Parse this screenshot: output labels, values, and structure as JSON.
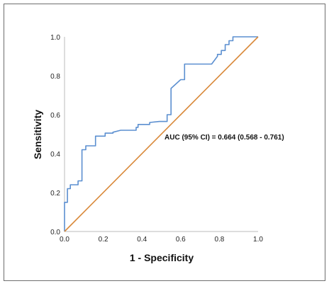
{
  "chart_data": {
    "type": "line",
    "xlabel": "1 - Specificity",
    "ylabel": "Sensitivity",
    "xlim": [
      0,
      1
    ],
    "ylim": [
      0,
      1
    ],
    "xticks": [
      "0.0",
      "0.2",
      "0.4",
      "0.6",
      "0.8",
      "1.0"
    ],
    "yticks": [
      "0.0",
      "0.2",
      "0.4",
      "0.6",
      "0.8",
      "1.0"
    ],
    "grid": false,
    "annotation": "AUC (95% CI) = 0.664 (0.568 - 0.761)",
    "series": [
      {
        "color": "#5b8fd0",
        "x": [
          0.0,
          0.0,
          0.015,
          0.015,
          0.03,
          0.03,
          0.07,
          0.07,
          0.09,
          0.09,
          0.11,
          0.11,
          0.16,
          0.16,
          0.21,
          0.21,
          0.25,
          0.25,
          0.29,
          0.37,
          0.37,
          0.38,
          0.38,
          0.44,
          0.44,
          0.49,
          0.53,
          0.53,
          0.55,
          0.55,
          0.6,
          0.62,
          0.62,
          0.76,
          0.79,
          0.79,
          0.81,
          0.81,
          0.83,
          0.83,
          0.85,
          0.85,
          0.87,
          0.87,
          1.0
        ],
        "y": [
          0.0,
          0.15,
          0.15,
          0.22,
          0.22,
          0.24,
          0.24,
          0.26,
          0.26,
          0.42,
          0.42,
          0.44,
          0.44,
          0.49,
          0.49,
          0.505,
          0.505,
          0.51,
          0.52,
          0.52,
          0.535,
          0.535,
          0.55,
          0.55,
          0.56,
          0.565,
          0.565,
          0.6,
          0.6,
          0.735,
          0.78,
          0.78,
          0.86,
          0.86,
          0.9,
          0.91,
          0.91,
          0.93,
          0.93,
          0.96,
          0.96,
          0.98,
          0.98,
          1.0,
          1.0
        ]
      },
      {
        "color": "#d9893a",
        "x": [
          0,
          1
        ],
        "y": [
          0,
          1
        ]
      }
    ]
  }
}
